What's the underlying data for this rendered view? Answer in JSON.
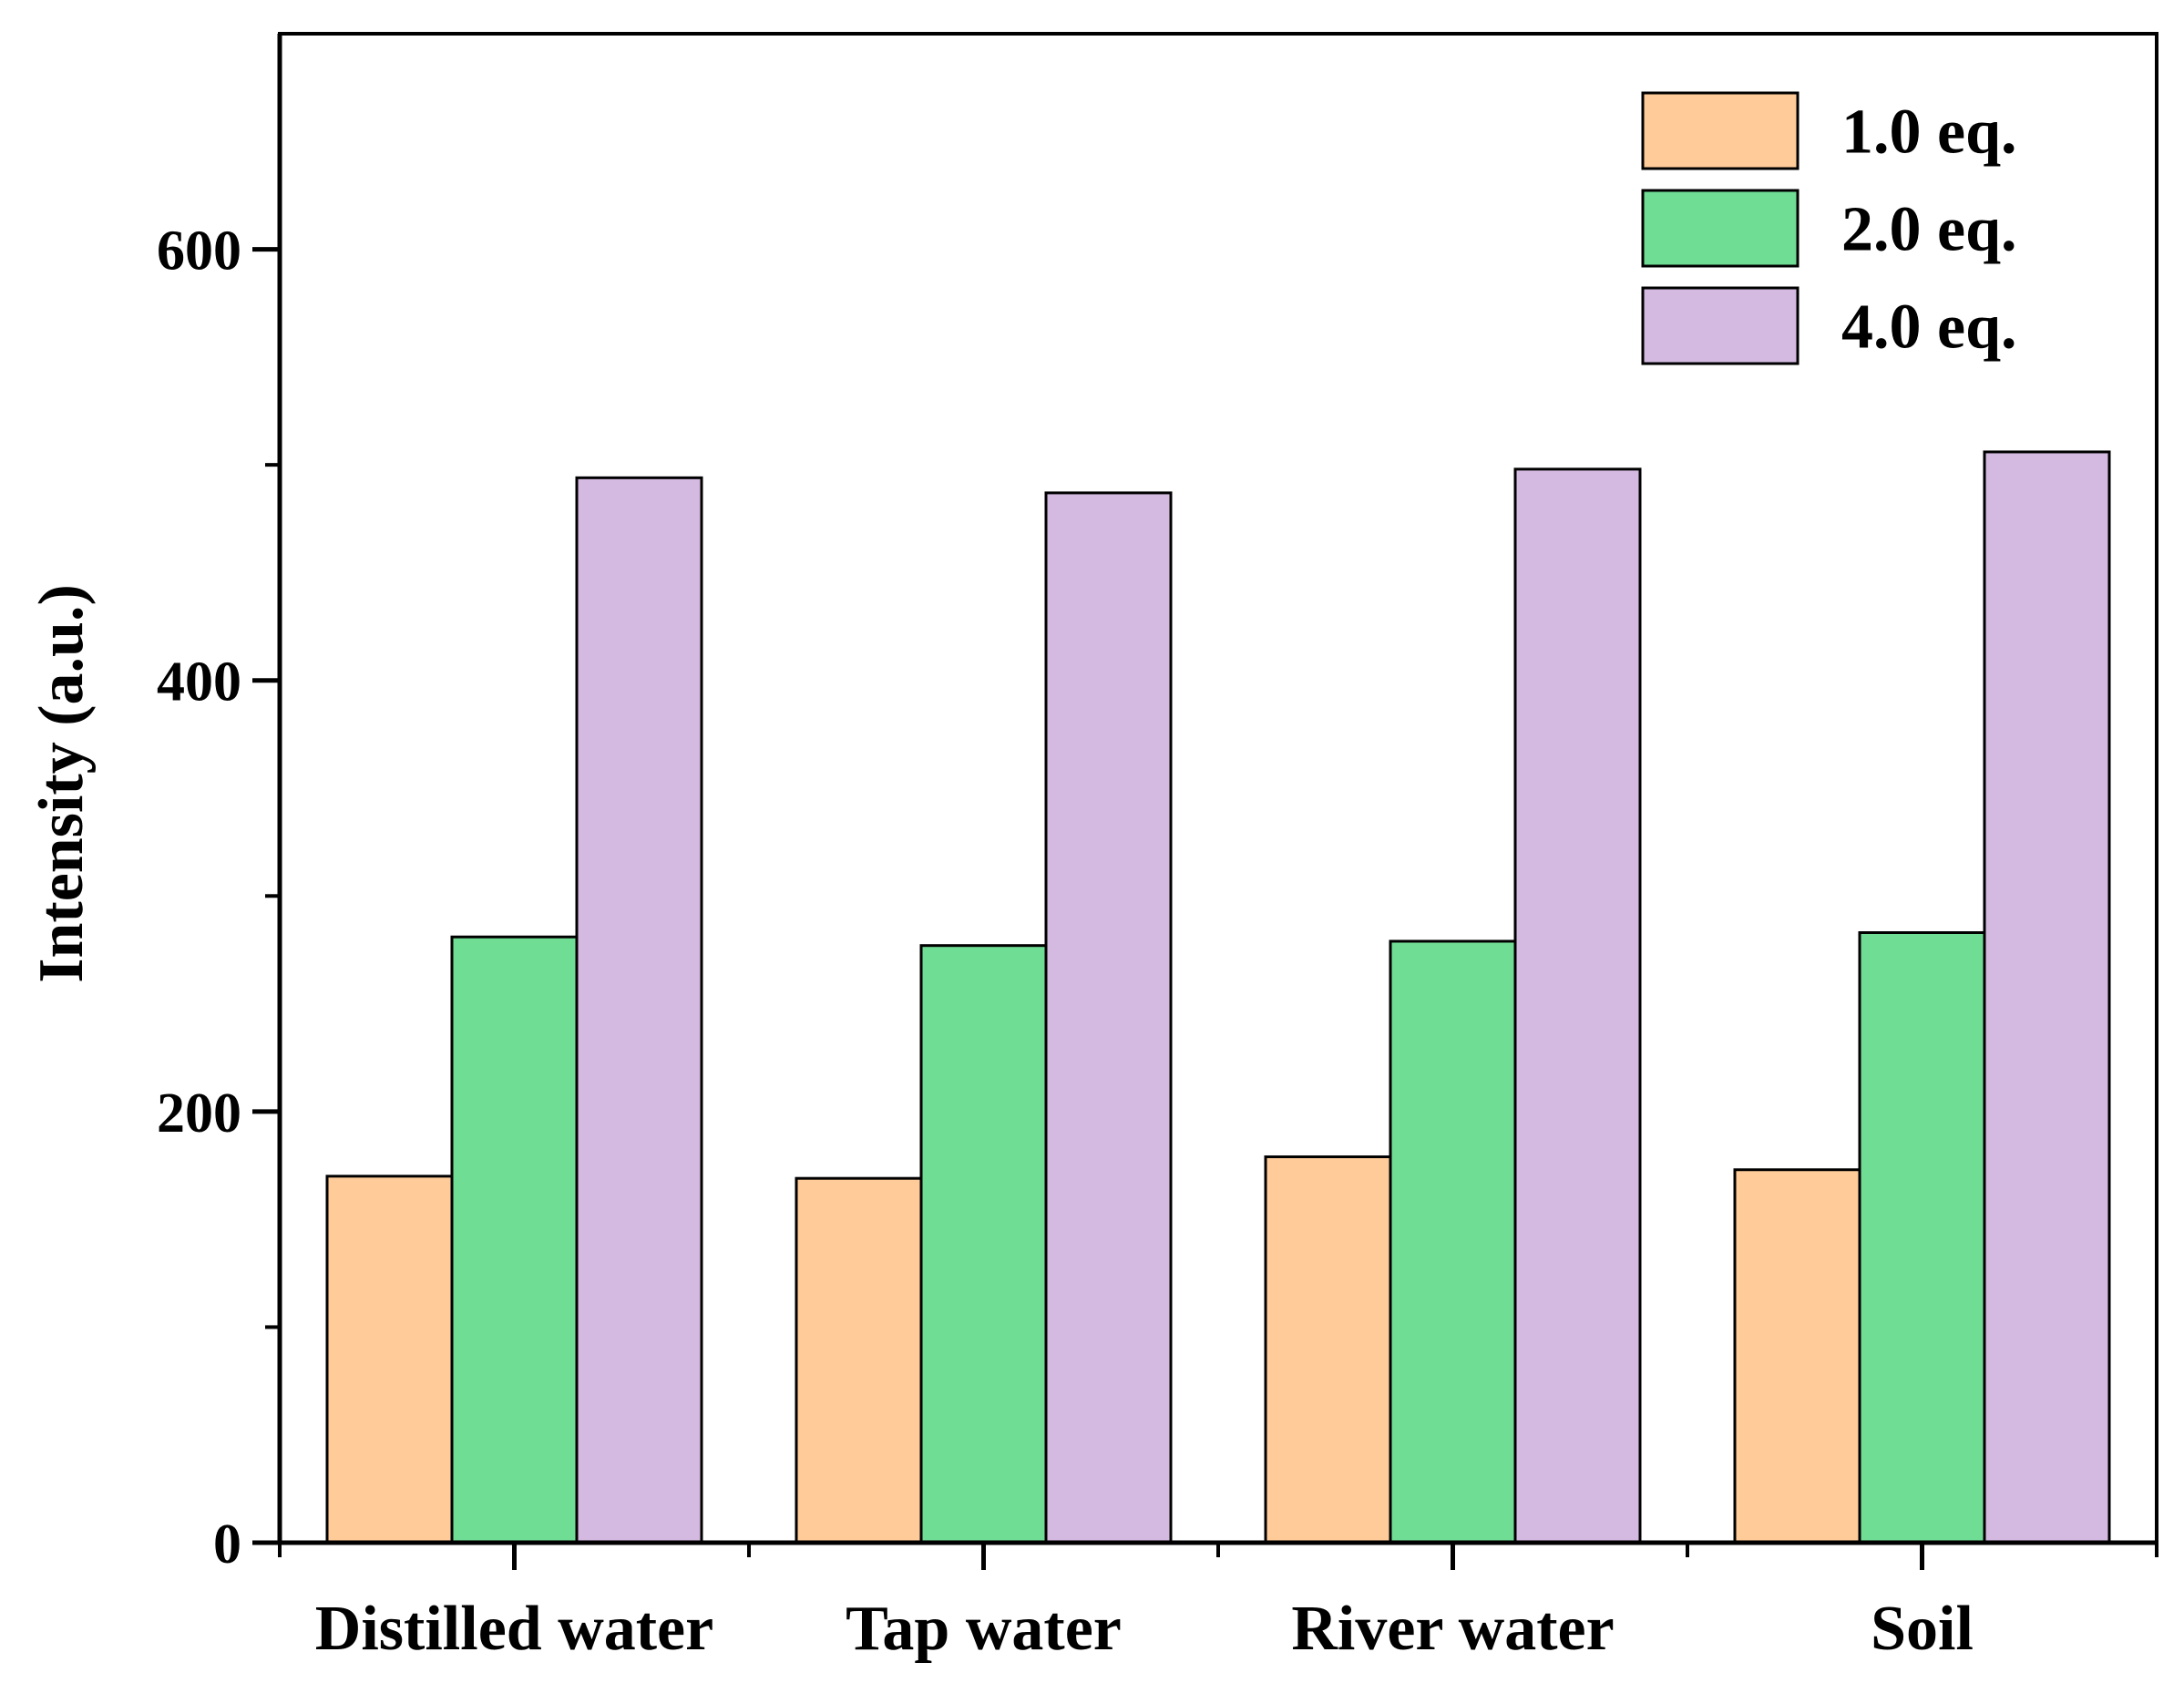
{
  "chart_data": {
    "type": "bar",
    "title": "",
    "xlabel": "",
    "ylabel": "Intensity (a.u.)",
    "ylim": [
      0,
      700
    ],
    "yticks_major": [
      0,
      200,
      400,
      600
    ],
    "yticks_minor": [
      100,
      300,
      500
    ],
    "categories": [
      "Distilled water",
      "Tap water",
      "River water",
      "Soil"
    ],
    "series": [
      {
        "name": "1.0 eq.",
        "color": "#FFCC99",
        "values": [
          170,
          169,
          179,
          173
        ]
      },
      {
        "name": "2.0 eq.",
        "color": "#70DD95",
        "values": [
          281,
          277,
          279,
          283
        ]
      },
      {
        "name": "4.0 eq.",
        "color": "#D4BAE0",
        "values": [
          494,
          487,
          498,
          506
        ]
      }
    ],
    "legend_position": "top-right",
    "grid": false
  }
}
